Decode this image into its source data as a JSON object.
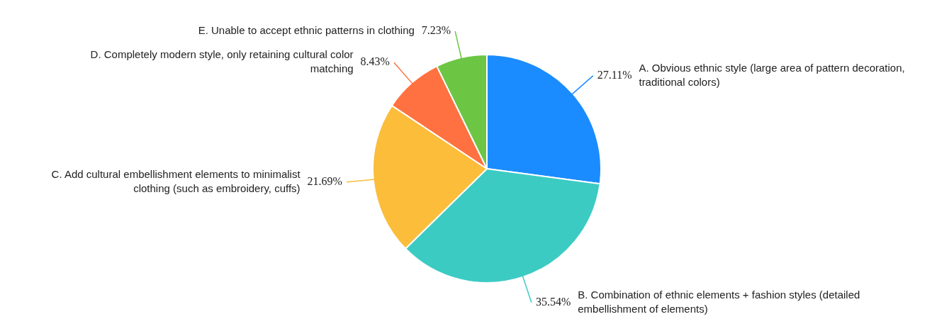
{
  "chart_data": {
    "type": "pie",
    "categories": [
      "A. Obvious ethnic style (large area of pattern decoration, traditional colors)",
      "B. Combination of ethnic elements + fashion styles (detailed embellishment of elements)",
      "C. Add cultural embellishment elements to minimalist clothing (such as embroidery, cuffs)",
      "D. Completely modern style, only retaining cultural color matching",
      "E. Unable to accept ethnic patterns in clothing"
    ],
    "values": [
      27.11,
      35.54,
      21.69,
      8.43,
      7.23
    ],
    "value_labels": [
      "27.11%",
      "35.54%",
      "21.69%",
      "8.43%",
      "7.23%"
    ],
    "colors": [
      "#1a8cff",
      "#3ccbc3",
      "#fbbd3a",
      "#ff7140",
      "#6cc644"
    ],
    "legend": false
  }
}
